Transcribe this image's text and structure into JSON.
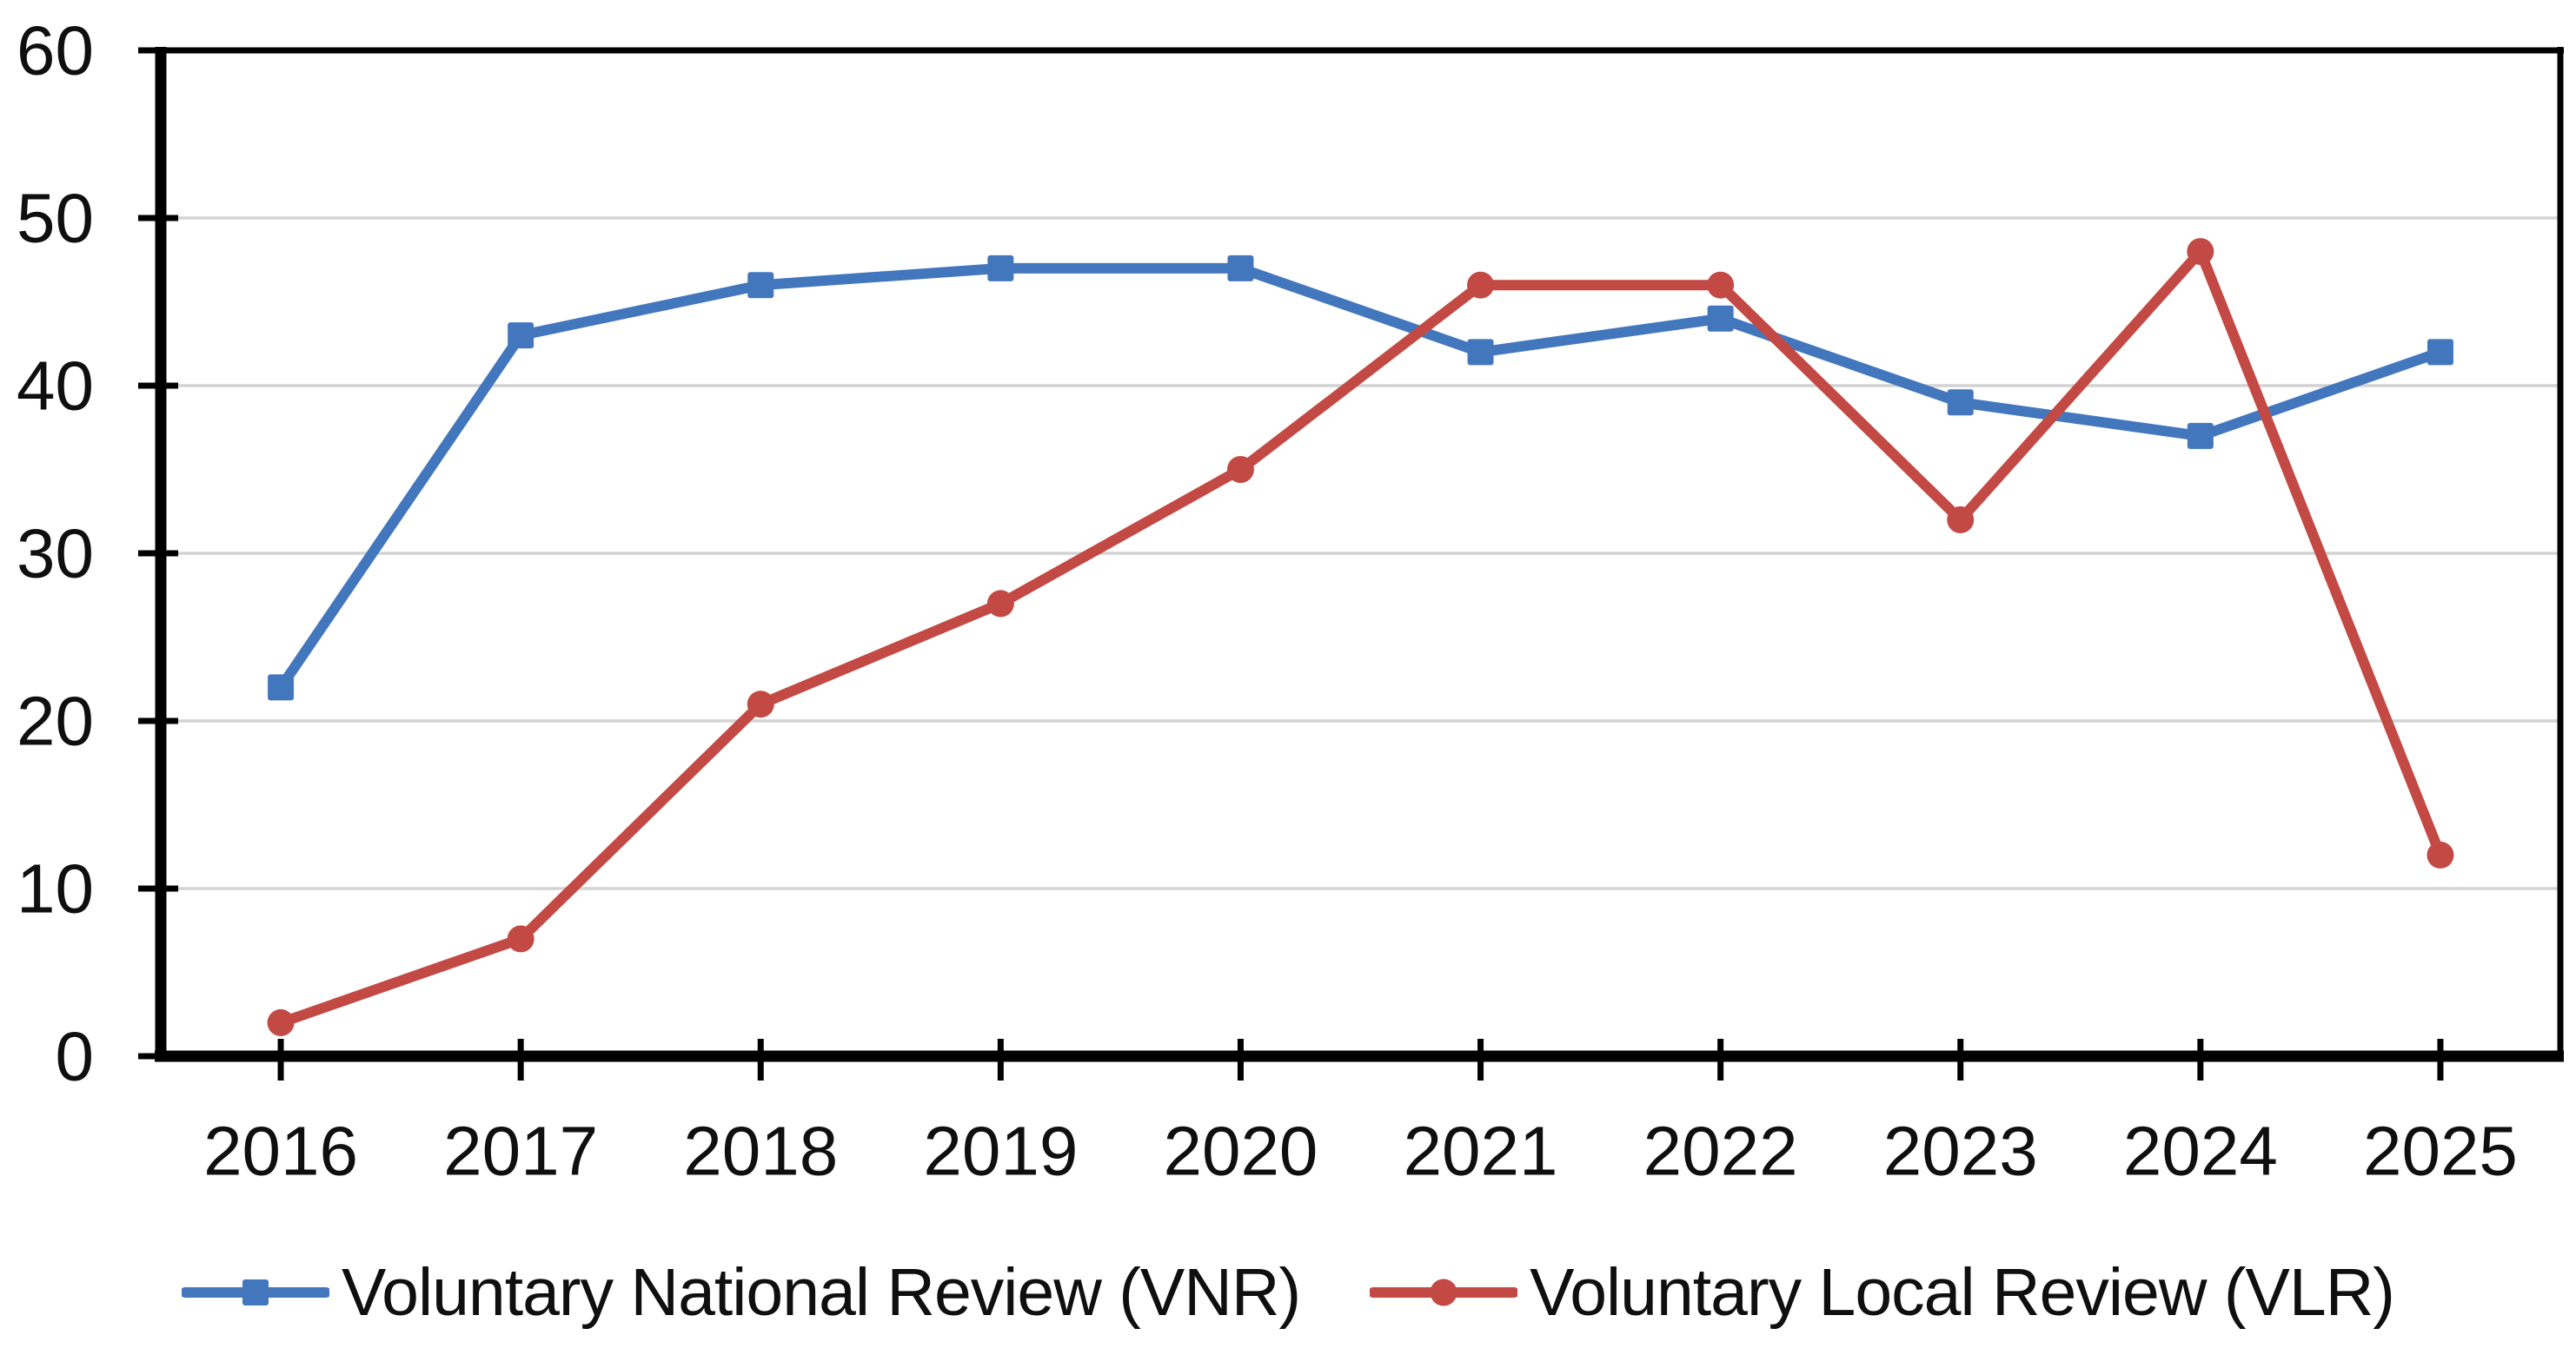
{
  "chart_data": {
    "type": "line",
    "title": "",
    "xlabel": "",
    "ylabel": "",
    "categories": [
      "2016",
      "2017",
      "2018",
      "2019",
      "2020",
      "2021",
      "2022",
      "2023",
      "2024",
      "2025"
    ],
    "series": [
      {
        "name": "Voluntary National Review (VNR)",
        "values": [
          22,
          43,
          46,
          47,
          47,
          42,
          44,
          39,
          37,
          42
        ],
        "color": "#4377BD",
        "marker": "square"
      },
      {
        "name": "Voluntary Local Review (VLR)",
        "values": [
          2,
          7,
          21,
          27,
          35,
          46,
          46,
          32,
          48,
          12
        ],
        "color": "#C34A44",
        "marker": "circle"
      }
    ],
    "ylim": [
      0,
      60
    ],
    "yticks": [
      0,
      10,
      20,
      30,
      40,
      50,
      60
    ],
    "grid": true,
    "legend_position": "bottom",
    "colors": {
      "grid": "#D3D3D3",
      "axis": "#000000",
      "tick_text": "#0F0F0F",
      "background": "#FFFFFF"
    }
  }
}
